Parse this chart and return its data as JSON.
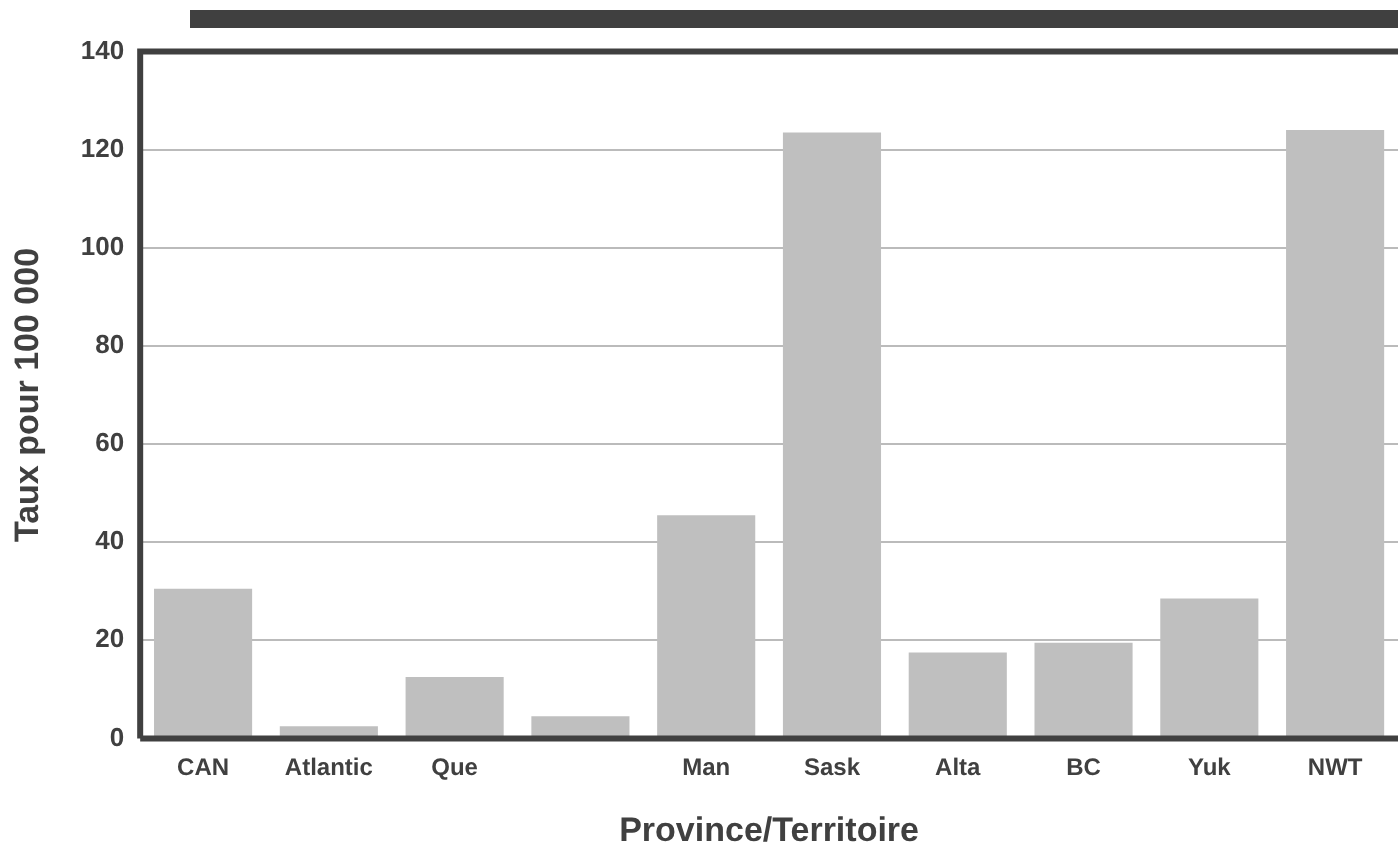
{
  "chart_data": {
    "type": "bar",
    "xlabel": "Province/Territoire",
    "ylabel": "Taux pour 100 000",
    "categories": [
      "CAN",
      "Atlantic",
      "Que",
      null,
      "Man",
      "Sask",
      "Alta",
      "BC",
      "Yuk",
      "NWT"
    ],
    "values": [
      30.5,
      2.5,
      12.5,
      4.5,
      45.5,
      123.5,
      17.5,
      19.5,
      28.5,
      124
    ],
    "color": "#bfbfbf",
    "ylim": [
      0,
      140
    ],
    "yticks": [
      0,
      20,
      40,
      60,
      80,
      100,
      120,
      140
    ],
    "grid": "y",
    "legend": false
  }
}
